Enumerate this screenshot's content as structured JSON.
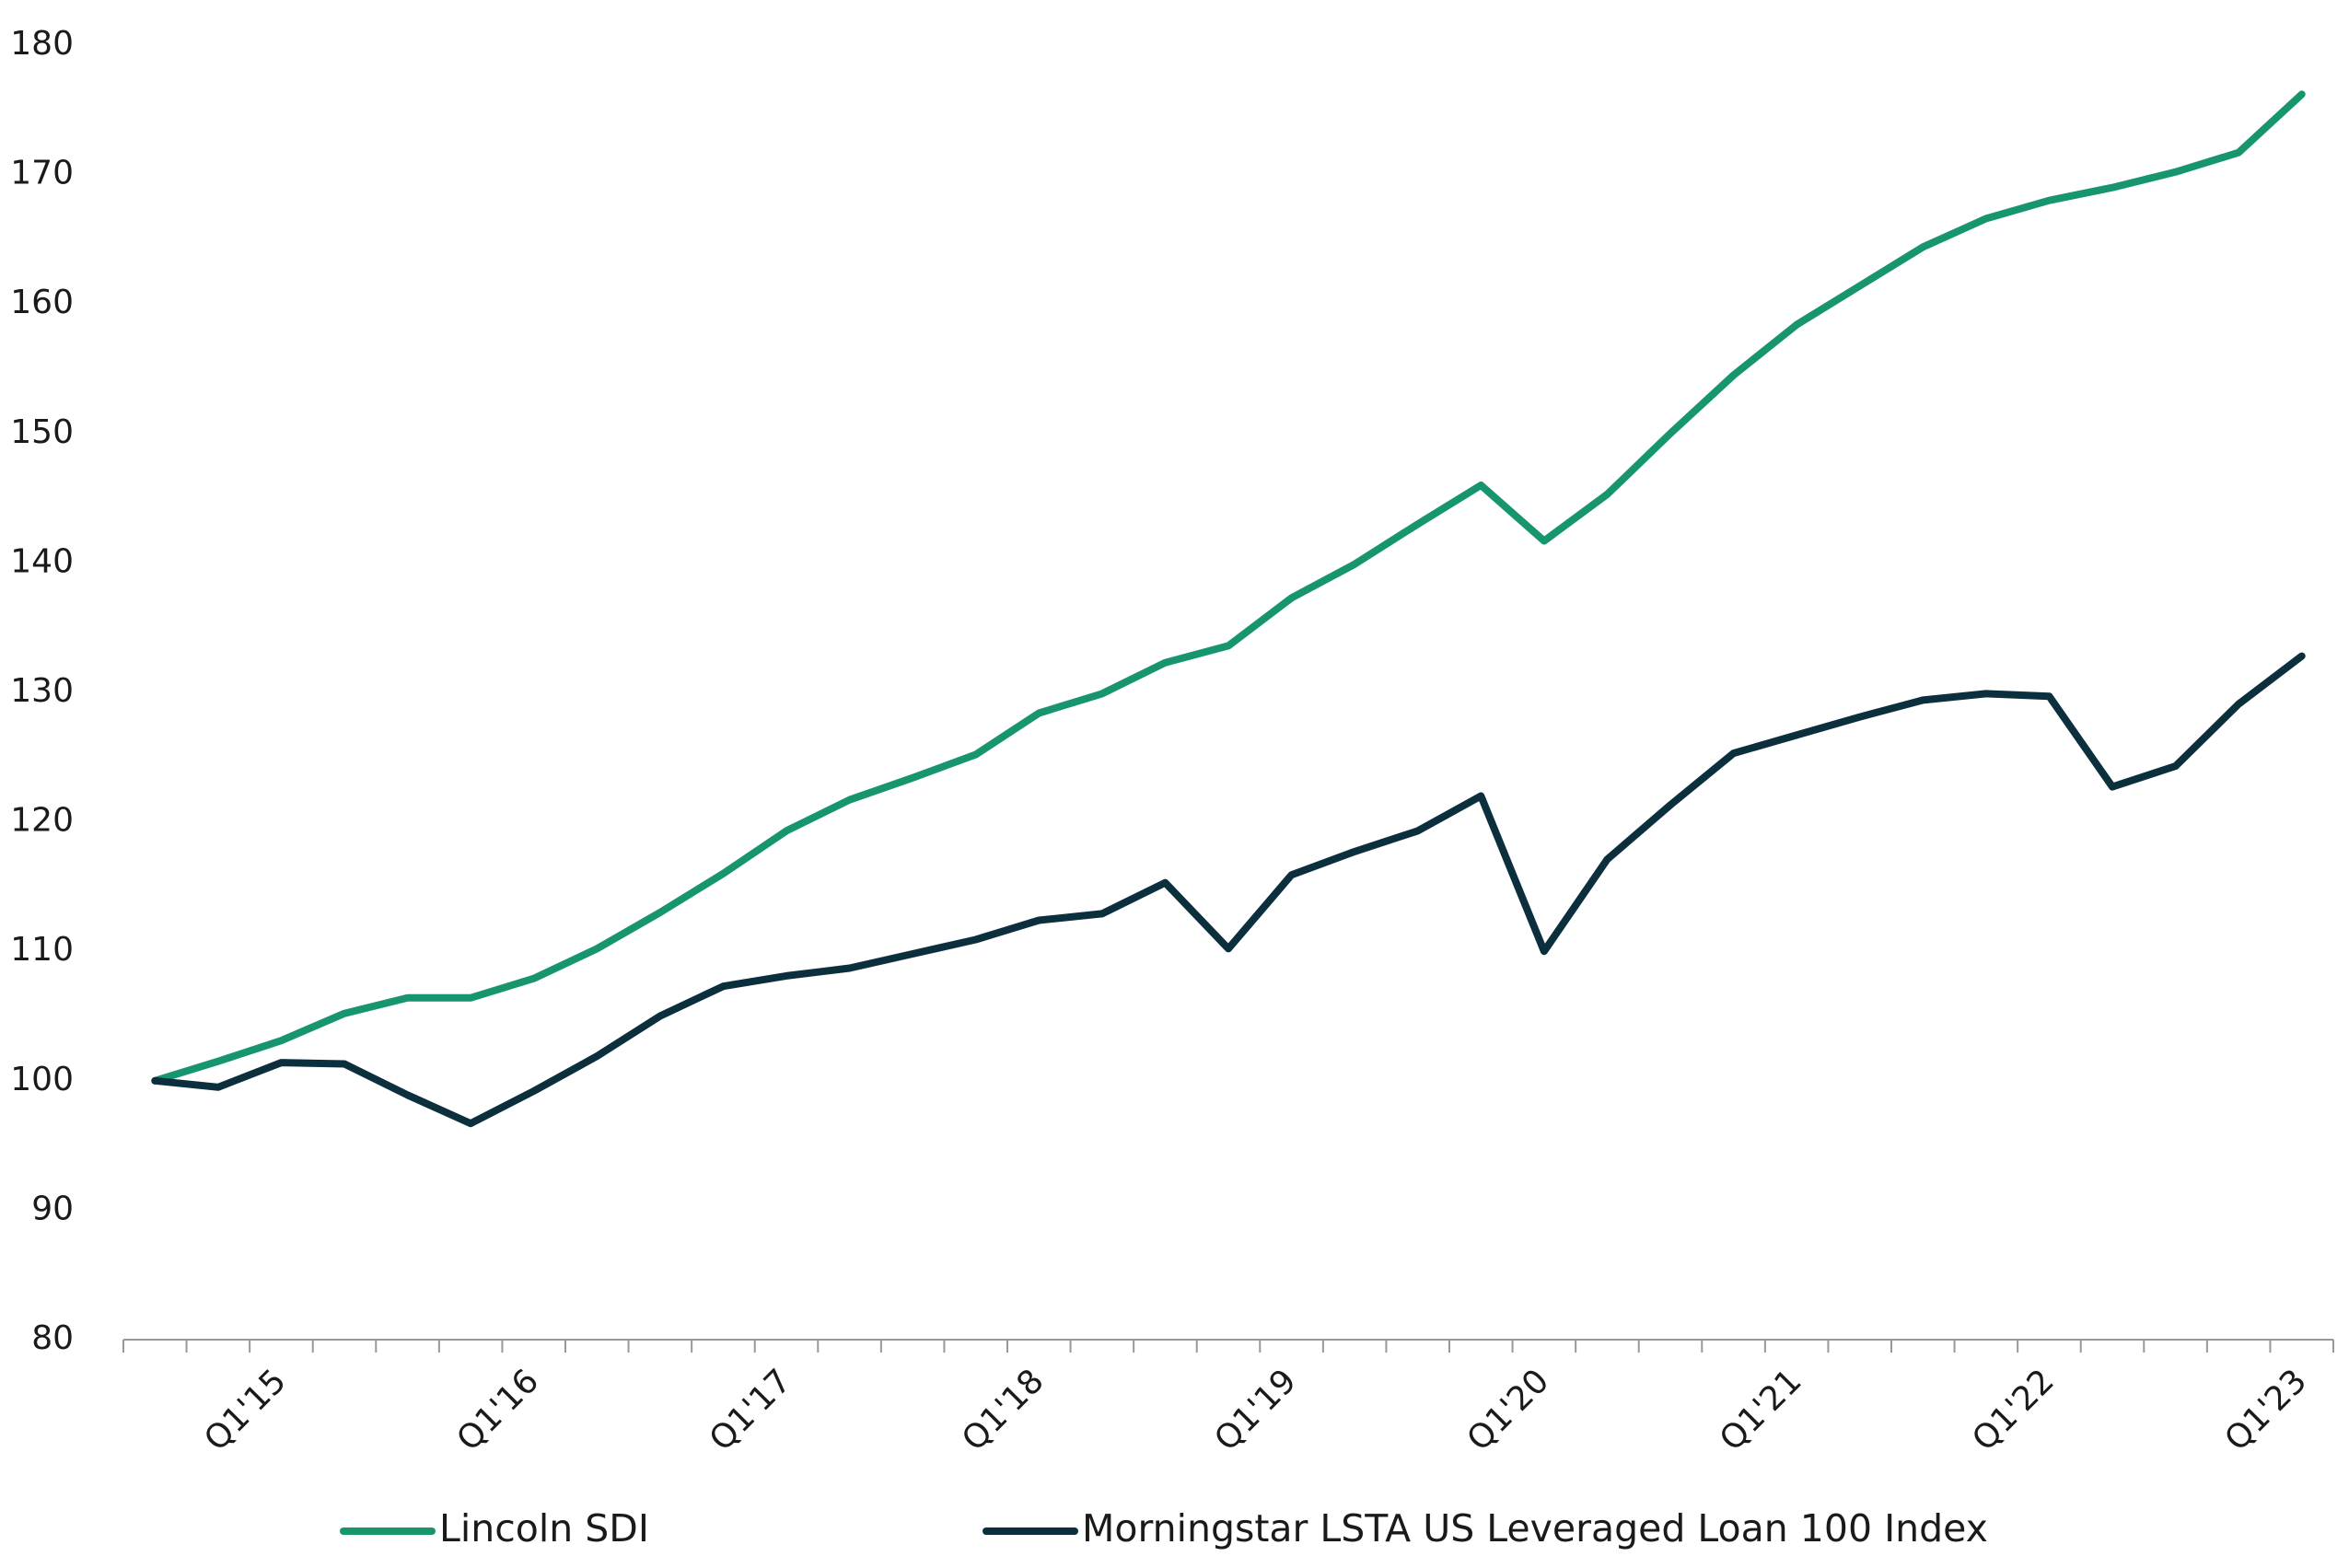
{
  "chart_data": {
    "type": "line",
    "categories": [
      null,
      null,
      "Q1'15",
      null,
      null,
      null,
      "Q1'16",
      null,
      null,
      null,
      "Q1'17",
      null,
      null,
      null,
      "Q1'18",
      null,
      null,
      null,
      "Q1'19",
      null,
      null,
      null,
      "Q1'20",
      null,
      null,
      null,
      "Q1'21",
      null,
      null,
      null,
      "Q1'22",
      null,
      null,
      null,
      "Q1'23"
    ],
    "series": [
      {
        "name": "Lincoln SDI",
        "color": "#16956f",
        "values": [
          100,
          101.5,
          103.1,
          105.2,
          106.4,
          106.4,
          107.9,
          110.2,
          113.0,
          116.0,
          119.3,
          121.7,
          123.4,
          125.2,
          128.4,
          129.9,
          132.3,
          133.6,
          137.3,
          139.9,
          143.0,
          146.0,
          141.7,
          145.3,
          150.0,
          154.5,
          158.4,
          161.4,
          164.4,
          166.6,
          168.0,
          169.0,
          170.2,
          171.7,
          176.2
        ]
      },
      {
        "name": "Morningstar LSTA US Leveraged Loan 100 Index",
        "color": "#0c2f3e",
        "values": [
          100,
          99.5,
          101.4,
          101.3,
          98.9,
          96.7,
          99.2,
          101.9,
          105.0,
          107.3,
          108.1,
          108.7,
          109.8,
          110.9,
          112.4,
          112.9,
          115.3,
          110.2,
          115.9,
          117.7,
          119.3,
          122.0,
          110.0,
          117.1,
          121.3,
          125.3,
          126.7,
          128.1,
          129.4,
          129.9,
          129.7,
          122.7,
          124.3,
          129.1,
          132.8
        ]
      }
    ],
    "ylim": [
      80,
      180
    ],
    "yticks": [
      80,
      90,
      100,
      110,
      120,
      130,
      140,
      150,
      160,
      170,
      180
    ],
    "grid": false,
    "legend": "bottom"
  }
}
